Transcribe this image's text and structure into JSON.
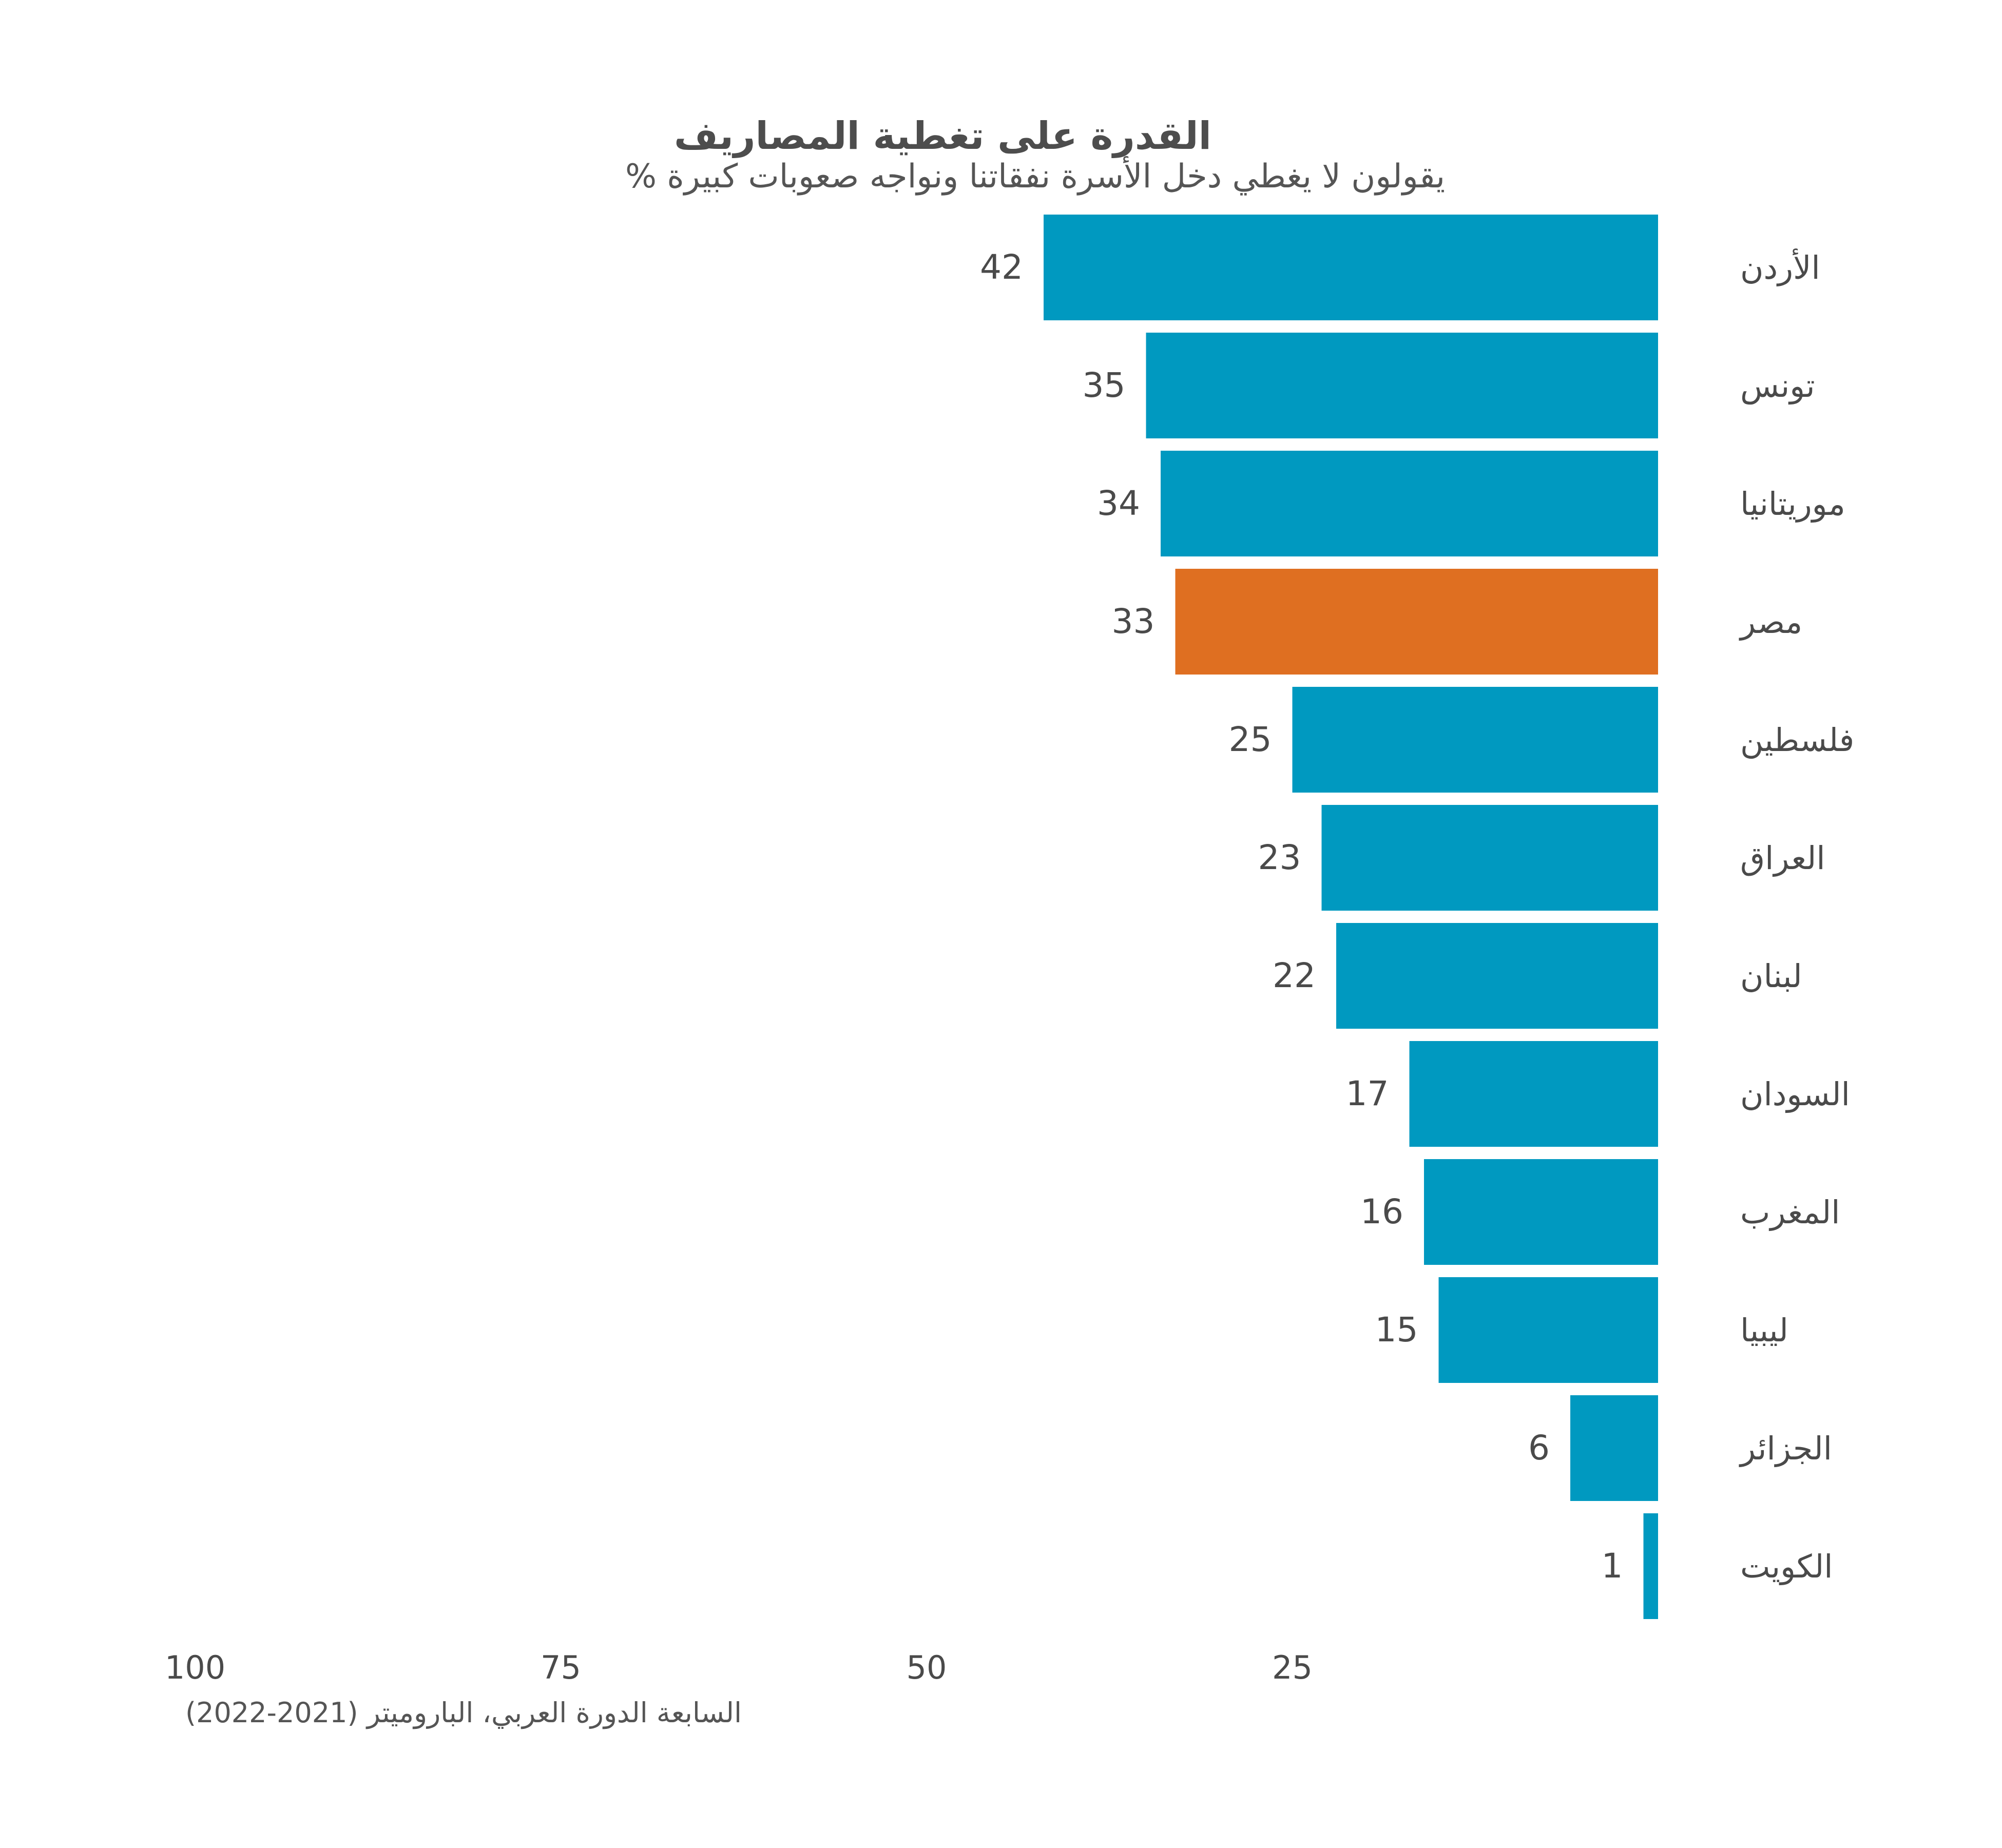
{
  "chart_data": {
    "type": "bar",
    "orientation": "horizontal",
    "direction": "right-to-left",
    "title": "القدرة على تغطية المصاريف",
    "subtitle": "% يقولون لا يغطي دخل الأسرة نفقاتنا ونواجه صعوبات كبيرة",
    "categories": [
      "الأردن",
      "تونس",
      "موريتانيا",
      "مصر",
      "فلسطين",
      "العراق",
      "لبنان",
      "السودان",
      "المغرب",
      "ليبيا",
      "الجزائر",
      "الكويت"
    ],
    "values": [
      42,
      35,
      34,
      33,
      25,
      23,
      22,
      17,
      16,
      15,
      6,
      1
    ],
    "xlim": [
      0,
      100
    ],
    "x_ticks": [
      100,
      75,
      50,
      25
    ],
    "highlight": "مصر",
    "colors": {
      "default": "#0099c0",
      "highlight": "#df6f21"
    },
    "grid": false,
    "source": "السابعة الدورة العربي، الباروميتر (2021-2022)"
  }
}
